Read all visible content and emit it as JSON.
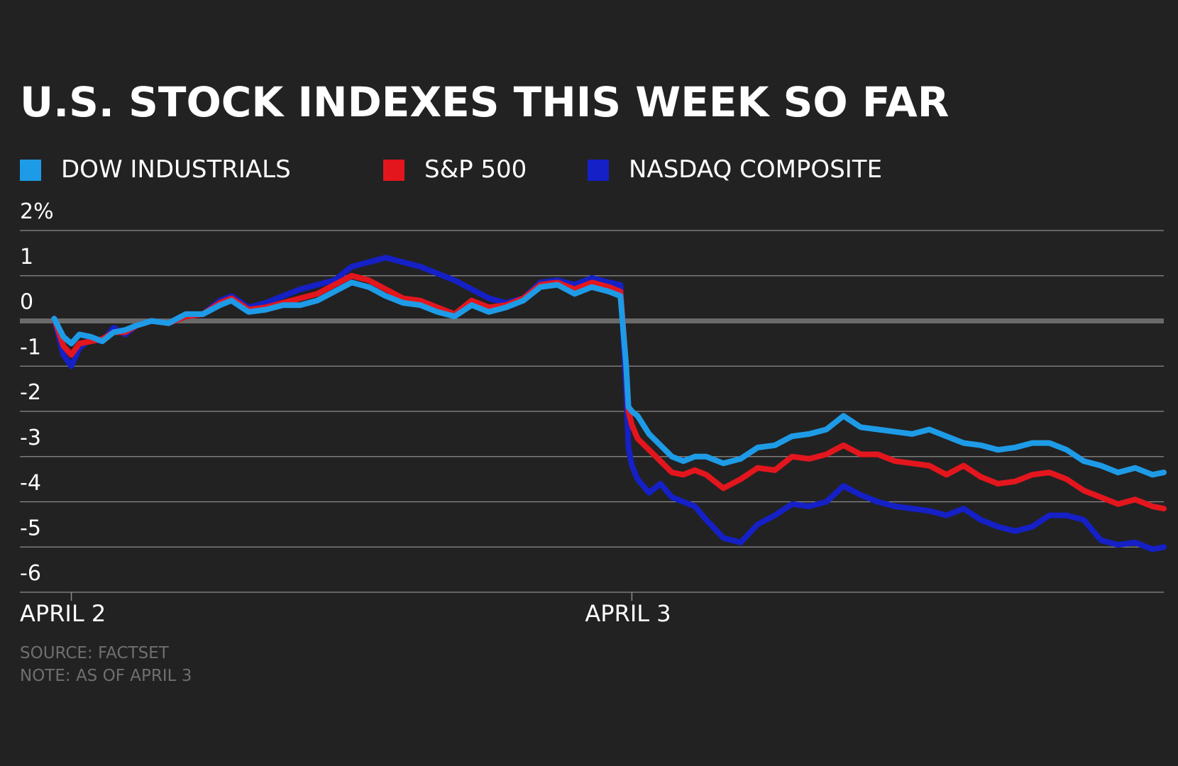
{
  "chart_data": {
    "type": "line",
    "title": "U.S. STOCK INDEXES THIS WEEK SO FAR",
    "xlabel": "",
    "ylabel": "",
    "x_tick_labels": [
      "APRIL 2",
      "APRIL 3"
    ],
    "y_tick_labels": [
      "2%",
      "1",
      "0",
      "-1",
      "-2",
      "-3",
      "-4",
      "-5",
      "-6"
    ],
    "y_ticks": [
      2,
      1,
      0,
      -1,
      -2,
      -3,
      -4,
      -5,
      -6
    ],
    "ylim": [
      -6,
      2
    ],
    "xlim": [
      0,
      1
    ],
    "x_ticks": [
      0.045,
      0.535
    ],
    "grid": true,
    "legend_position": "top-left",
    "notes": [
      "SOURCE: FACTSET",
      "NOTE: AS OF APRIL 3"
    ],
    "series": [
      {
        "name": "DOW INDUSTRIALS",
        "color": "#1e9be6",
        "x": [
          0.03,
          0.038,
          0.045,
          0.052,
          0.062,
          0.072,
          0.082,
          0.092,
          0.102,
          0.115,
          0.13,
          0.145,
          0.16,
          0.175,
          0.185,
          0.2,
          0.215,
          0.23,
          0.245,
          0.26,
          0.275,
          0.29,
          0.305,
          0.32,
          0.335,
          0.35,
          0.365,
          0.38,
          0.395,
          0.41,
          0.425,
          0.44,
          0.455,
          0.47,
          0.485,
          0.5,
          0.515,
          0.525,
          0.53,
          0.532,
          0.535,
          0.54,
          0.55,
          0.56,
          0.57,
          0.58,
          0.59,
          0.6,
          0.615,
          0.63,
          0.645,
          0.66,
          0.675,
          0.69,
          0.705,
          0.72,
          0.735,
          0.75,
          0.765,
          0.78,
          0.795,
          0.81,
          0.825,
          0.84,
          0.855,
          0.87,
          0.885,
          0.9,
          0.915,
          0.93,
          0.945,
          0.96,
          0.975,
          0.99,
          1.0
        ],
        "values": [
          0.05,
          -0.35,
          -0.5,
          -0.3,
          -0.35,
          -0.45,
          -0.25,
          -0.2,
          -0.1,
          0.0,
          -0.05,
          0.15,
          0.15,
          0.35,
          0.45,
          0.2,
          0.25,
          0.35,
          0.35,
          0.45,
          0.65,
          0.85,
          0.75,
          0.55,
          0.4,
          0.35,
          0.2,
          0.1,
          0.35,
          0.2,
          0.3,
          0.45,
          0.75,
          0.8,
          0.6,
          0.75,
          0.65,
          0.55,
          -1.0,
          -1.9,
          -2.0,
          -2.1,
          -2.5,
          -2.75,
          -3.0,
          -3.1,
          -3.0,
          -3.0,
          -3.15,
          -3.05,
          -2.8,
          -2.75,
          -2.55,
          -2.5,
          -2.4,
          -2.1,
          -2.35,
          -2.4,
          -2.45,
          -2.5,
          -2.4,
          -2.55,
          -2.7,
          -2.75,
          -2.85,
          -2.8,
          -2.7,
          -2.7,
          -2.85,
          -3.1,
          -3.2,
          -3.35,
          -3.25,
          -3.4,
          -3.35
        ]
      },
      {
        "name": "S&P 500",
        "color": "#e3161d",
        "x": [
          0.03,
          0.038,
          0.045,
          0.052,
          0.062,
          0.072,
          0.082,
          0.092,
          0.102,
          0.115,
          0.13,
          0.145,
          0.16,
          0.175,
          0.185,
          0.2,
          0.215,
          0.23,
          0.245,
          0.26,
          0.275,
          0.29,
          0.305,
          0.32,
          0.335,
          0.35,
          0.365,
          0.38,
          0.395,
          0.41,
          0.425,
          0.44,
          0.455,
          0.47,
          0.485,
          0.5,
          0.515,
          0.525,
          0.53,
          0.532,
          0.535,
          0.54,
          0.55,
          0.56,
          0.57,
          0.58,
          0.59,
          0.6,
          0.615,
          0.63,
          0.645,
          0.66,
          0.675,
          0.69,
          0.705,
          0.72,
          0.735,
          0.75,
          0.765,
          0.78,
          0.795,
          0.81,
          0.825,
          0.84,
          0.855,
          0.87,
          0.885,
          0.9,
          0.915,
          0.93,
          0.945,
          0.96,
          0.975,
          0.99,
          1.0
        ],
        "values": [
          0.05,
          -0.55,
          -0.75,
          -0.5,
          -0.45,
          -0.4,
          -0.25,
          -0.25,
          -0.1,
          0.0,
          -0.05,
          0.1,
          0.15,
          0.4,
          0.5,
          0.25,
          0.3,
          0.4,
          0.5,
          0.6,
          0.8,
          1.0,
          0.9,
          0.7,
          0.5,
          0.45,
          0.3,
          0.15,
          0.45,
          0.3,
          0.35,
          0.5,
          0.8,
          0.85,
          0.7,
          0.85,
          0.75,
          0.65,
          -1.0,
          -2.0,
          -2.3,
          -2.6,
          -2.85,
          -3.1,
          -3.35,
          -3.4,
          -3.3,
          -3.4,
          -3.7,
          -3.5,
          -3.25,
          -3.3,
          -3.0,
          -3.05,
          -2.95,
          -2.75,
          -2.95,
          -2.95,
          -3.1,
          -3.15,
          -3.2,
          -3.4,
          -3.2,
          -3.45,
          -3.6,
          -3.55,
          -3.4,
          -3.35,
          -3.5,
          -3.75,
          -3.9,
          -4.05,
          -3.95,
          -4.1,
          -4.15
        ]
      },
      {
        "name": "NASDAQ COMPOSITE",
        "color": "#1520c6",
        "x": [
          0.03,
          0.038,
          0.045,
          0.052,
          0.062,
          0.072,
          0.082,
          0.092,
          0.102,
          0.115,
          0.13,
          0.145,
          0.16,
          0.175,
          0.185,
          0.2,
          0.215,
          0.23,
          0.245,
          0.26,
          0.275,
          0.29,
          0.305,
          0.32,
          0.335,
          0.35,
          0.365,
          0.38,
          0.395,
          0.41,
          0.425,
          0.44,
          0.455,
          0.47,
          0.485,
          0.5,
          0.515,
          0.525,
          0.53,
          0.532,
          0.535,
          0.54,
          0.55,
          0.56,
          0.57,
          0.58,
          0.59,
          0.6,
          0.615,
          0.63,
          0.645,
          0.66,
          0.675,
          0.69,
          0.705,
          0.72,
          0.735,
          0.75,
          0.765,
          0.78,
          0.795,
          0.81,
          0.825,
          0.84,
          0.855,
          0.87,
          0.885,
          0.9,
          0.915,
          0.93,
          0.945,
          0.96,
          0.975,
          0.99,
          1.0
        ],
        "values": [
          0.05,
          -0.75,
          -1.0,
          -0.6,
          -0.4,
          -0.45,
          -0.15,
          -0.3,
          -0.1,
          0.0,
          -0.05,
          0.1,
          0.15,
          0.45,
          0.55,
          0.3,
          0.4,
          0.55,
          0.7,
          0.8,
          0.9,
          1.2,
          1.3,
          1.4,
          1.3,
          1.2,
          1.05,
          0.9,
          0.7,
          0.5,
          0.4,
          0.5,
          0.85,
          0.9,
          0.8,
          0.95,
          0.85,
          0.8,
          -1.5,
          -2.8,
          -3.2,
          -3.5,
          -3.8,
          -3.6,
          -3.9,
          -4.0,
          -4.1,
          -4.4,
          -4.8,
          -4.9,
          -4.5,
          -4.3,
          -4.05,
          -4.1,
          -4.0,
          -3.65,
          -3.85,
          -4.0,
          -4.1,
          -4.15,
          -4.2,
          -4.3,
          -4.15,
          -4.4,
          -4.55,
          -4.65,
          -4.55,
          -4.3,
          -4.3,
          -4.4,
          -4.85,
          -4.95,
          -4.9,
          -5.05,
          -5.0
        ]
      }
    ]
  }
}
